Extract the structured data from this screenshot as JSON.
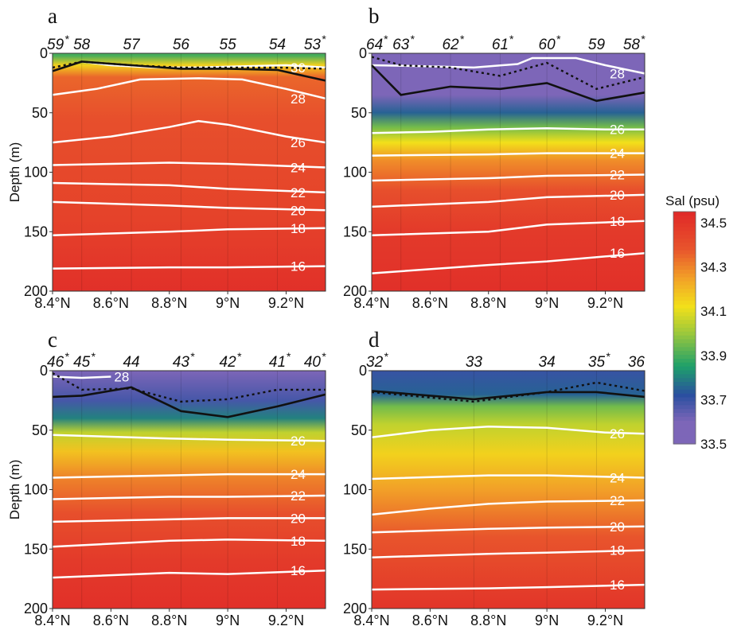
{
  "chart_data": {
    "type": "heatmap",
    "colorbar": {
      "label": "Sal (psu)",
      "ticks": [
        "34.5",
        "34.3",
        "34.1",
        "33.9",
        "33.7",
        "33.5"
      ],
      "range": [
        33.5,
        34.55
      ],
      "colors": {
        "low": "#7d66b8",
        "blue": "#2a4fa0",
        "green": "#1ea06a",
        "lime": "#9cc83c",
        "yellow": "#f2e01a",
        "orange": "#f2a028",
        "red_orange": "#e8542c",
        "red": "#e02828"
      }
    },
    "x_ticks": [
      "8.4°N",
      "8.6°N",
      "8.8°N",
      "9°N",
      "9.2°N"
    ],
    "x_tick_values": [
      8.4,
      8.6,
      8.8,
      9.0,
      9.2
    ],
    "xlim": [
      8.4,
      9.335
    ],
    "y_label": "Depth (m)",
    "y_ticks": [
      "0",
      "50",
      "100",
      "150",
      "200"
    ],
    "y_tick_values": [
      0,
      50,
      100,
      150,
      200
    ],
    "ylim": [
      200,
      0
    ],
    "panels": [
      {
        "id": "a",
        "stations": [
          {
            "name": "59",
            "lat": 8.4,
            "star": true
          },
          {
            "name": "58",
            "lat": 8.5,
            "star": false
          },
          {
            "name": "57",
            "lat": 8.67,
            "star": false
          },
          {
            "name": "56",
            "lat": 8.84,
            "star": false
          },
          {
            "name": "55",
            "lat": 9.0,
            "star": false
          },
          {
            "name": "54",
            "lat": 9.17,
            "star": false
          },
          {
            "name": "53",
            "lat": 9.335,
            "star": true
          }
        ],
        "salinity_layers": [
          {
            "depth": 2,
            "psu": 33.9
          },
          {
            "depth": 10,
            "psu": 34.15
          },
          {
            "depth": 20,
            "psu": 34.35
          },
          {
            "depth": 55,
            "psu": 34.4
          },
          {
            "depth": 90,
            "psu": 34.42
          },
          {
            "depth": 140,
            "psu": 34.45
          },
          {
            "depth": 200,
            "psu": 34.52
          }
        ],
        "isotherms": [
          {
            "label": "30",
            "lat": [
              8.5,
              8.6,
              8.75,
              8.9,
              9.05,
              9.2,
              9.335
            ],
            "depth": [
              7,
              10,
              12,
              12,
              11,
              10,
              12
            ]
          },
          {
            "label": "28",
            "lat": [
              8.4,
              8.55,
              8.7,
              8.9,
              9.05,
              9.2,
              9.335
            ],
            "depth": [
              35,
              30,
              22,
              21,
              22,
              30,
              38
            ]
          },
          {
            "label": "26",
            "lat": [
              8.4,
              8.6,
              8.8,
              8.9,
              9.0,
              9.2,
              9.335
            ],
            "depth": [
              75,
              70,
              62,
              57,
              60,
              70,
              75
            ]
          },
          {
            "label": "24",
            "lat": [
              8.4,
              8.8,
              9.0,
              9.335
            ],
            "depth": [
              94,
              92,
              93,
              96
            ]
          },
          {
            "label": "22",
            "lat": [
              8.4,
              8.8,
              9.0,
              9.335
            ],
            "depth": [
              109,
              111,
              114,
              117
            ]
          },
          {
            "label": "20",
            "lat": [
              8.4,
              8.8,
              9.0,
              9.335
            ],
            "depth": [
              125,
              128,
              130,
              132
            ]
          },
          {
            "label": "18",
            "lat": [
              8.4,
              8.8,
              9.0,
              9.335
            ],
            "depth": [
              153,
              150,
              148,
              147
            ]
          },
          {
            "label": "16",
            "lat": [
              8.4,
              8.8,
              9.0,
              9.335
            ],
            "depth": [
              181,
              180,
              180,
              179
            ]
          }
        ],
        "mixed_layer_solid": {
          "lat": [
            8.4,
            8.5,
            8.67,
            8.84,
            9.0,
            9.17,
            9.335
          ],
          "depth": [
            15,
            7,
            10,
            13,
            13,
            14,
            23
          ]
        },
        "mixed_layer_dotted": {
          "lat": [
            8.4,
            8.5,
            8.67,
            8.84,
            9.0,
            9.17,
            9.335
          ],
          "depth": [
            12,
            7,
            10,
            12,
            12,
            12,
            13
          ]
        }
      },
      {
        "id": "b",
        "stations": [
          {
            "name": "64",
            "lat": 8.4,
            "star": true
          },
          {
            "name": "63",
            "lat": 8.5,
            "star": true
          },
          {
            "name": "62",
            "lat": 8.67,
            "star": true
          },
          {
            "name": "61",
            "lat": 8.84,
            "star": true
          },
          {
            "name": "60",
            "lat": 9.0,
            "star": true
          },
          {
            "name": "59",
            "lat": 9.17,
            "star": false
          },
          {
            "name": "58",
            "lat": 9.335,
            "star": true
          }
        ],
        "salinity_layers": [
          {
            "depth": 0,
            "psu": 33.5
          },
          {
            "depth": 35,
            "psu": 33.6
          },
          {
            "depth": 50,
            "psu": 33.75
          },
          {
            "depth": 62,
            "psu": 33.95
          },
          {
            "depth": 75,
            "psu": 34.12
          },
          {
            "depth": 90,
            "psu": 34.28
          },
          {
            "depth": 115,
            "psu": 34.4
          },
          {
            "depth": 150,
            "psu": 34.48
          },
          {
            "depth": 200,
            "psu": 34.52
          }
        ],
        "isotherms": [
          {
            "label": "28",
            "lat": [
              8.4,
              8.6,
              8.75,
              8.9,
              8.95,
              9.1,
              9.2,
              9.335
            ],
            "depth": [
              10,
              11,
              12,
              9,
              4,
              4,
              10,
              17
            ]
          },
          {
            "label": "26",
            "lat": [
              8.4,
              8.6,
              8.8,
              9.0,
              9.2,
              9.335
            ],
            "depth": [
              67,
              66,
              64,
              63,
              64,
              64
            ]
          },
          {
            "label": "24",
            "lat": [
              8.4,
              8.8,
              9.0,
              9.335
            ],
            "depth": [
              86,
              85,
              84,
              84
            ]
          },
          {
            "label": "22",
            "lat": [
              8.4,
              8.8,
              9.0,
              9.335
            ],
            "depth": [
              107,
              105,
              103,
              102
            ]
          },
          {
            "label": "20",
            "lat": [
              8.4,
              8.8,
              9.0,
              9.335
            ],
            "depth": [
              129,
              125,
              121,
              119
            ]
          },
          {
            "label": "18",
            "lat": [
              8.4,
              8.8,
              9.0,
              9.335
            ],
            "depth": [
              153,
              150,
              144,
              141
            ]
          },
          {
            "label": "16",
            "lat": [
              8.4,
              8.8,
              9.0,
              9.335
            ],
            "depth": [
              185,
              178,
              175,
              168
            ]
          }
        ],
        "mixed_layer_solid": {
          "lat": [
            8.4,
            8.5,
            8.67,
            8.84,
            9.0,
            9.17,
            9.335
          ],
          "depth": [
            10,
            35,
            28,
            30,
            25,
            40,
            33
          ]
        },
        "mixed_layer_dotted": {
          "lat": [
            8.4,
            8.5,
            8.67,
            8.84,
            9.0,
            9.17,
            9.335
          ],
          "depth": [
            3,
            10,
            12,
            19,
            8,
            30,
            20
          ]
        }
      },
      {
        "id": "c",
        "stations": [
          {
            "name": "46",
            "lat": 8.4,
            "star": true
          },
          {
            "name": "45",
            "lat": 8.5,
            "star": true
          },
          {
            "name": "44",
            "lat": 8.67,
            "star": false
          },
          {
            "name": "43",
            "lat": 8.84,
            "star": true
          },
          {
            "name": "42",
            "lat": 9.0,
            "star": true
          },
          {
            "name": "41",
            "lat": 9.17,
            "star": true
          },
          {
            "name": "40",
            "lat": 9.335,
            "star": true
          }
        ],
        "salinity_layers": [
          {
            "depth": 0,
            "psu": 33.55
          },
          {
            "depth": 25,
            "psu": 33.68
          },
          {
            "depth": 40,
            "psu": 33.8
          },
          {
            "depth": 52,
            "psu": 34.05
          },
          {
            "depth": 68,
            "psu": 34.18
          },
          {
            "depth": 90,
            "psu": 34.3
          },
          {
            "depth": 120,
            "psu": 34.4
          },
          {
            "depth": 160,
            "psu": 34.48
          },
          {
            "depth": 200,
            "psu": 34.52
          }
        ],
        "isotherms": [
          {
            "label": "28",
            "lat": [
              8.4,
              8.5,
              8.6
            ],
            "depth": [
              5,
              6,
              5
            ]
          },
          {
            "label": "26",
            "lat": [
              8.4,
              8.8,
              9.0,
              9.335
            ],
            "depth": [
              54,
              57,
              58,
              59
            ]
          },
          {
            "label": "24",
            "lat": [
              8.4,
              8.8,
              9.0,
              9.335
            ],
            "depth": [
              90,
              88,
              87,
              87
            ]
          },
          {
            "label": "22",
            "lat": [
              8.4,
              8.8,
              9.0,
              9.335
            ],
            "depth": [
              108,
              106,
              106,
              105
            ]
          },
          {
            "label": "20",
            "lat": [
              8.4,
              8.8,
              9.0,
              9.335
            ],
            "depth": [
              127,
              125,
              124,
              124
            ]
          },
          {
            "label": "18",
            "lat": [
              8.4,
              8.8,
              9.0,
              9.335
            ],
            "depth": [
              148,
              143,
              142,
              143
            ]
          },
          {
            "label": "16",
            "lat": [
              8.4,
              8.8,
              9.0,
              9.335
            ],
            "depth": [
              174,
              170,
              171,
              168
            ]
          }
        ],
        "mixed_layer_solid": {
          "lat": [
            8.4,
            8.5,
            8.67,
            8.84,
            9.0,
            9.17,
            9.335
          ],
          "depth": [
            22,
            21,
            14,
            34,
            39,
            30,
            20
          ]
        },
        "mixed_layer_dotted": {
          "lat": [
            8.4,
            8.5,
            8.67,
            8.84,
            9.0,
            9.17,
            9.335
          ],
          "depth": [
            2,
            16,
            15,
            26,
            24,
            16,
            16
          ]
        }
      },
      {
        "id": "d",
        "stations": [
          {
            "name": "32",
            "lat": 8.4,
            "star": true
          },
          {
            "name": "33",
            "lat": 8.75,
            "star": false
          },
          {
            "name": "34",
            "lat": 9.0,
            "star": false
          },
          {
            "name": "35",
            "lat": 9.17,
            "star": true
          },
          {
            "name": "36",
            "lat": 9.335,
            "star": false
          }
        ],
        "salinity_layers": [
          {
            "depth": 0,
            "psu": 33.7
          },
          {
            "depth": 20,
            "psu": 33.75
          },
          {
            "depth": 30,
            "psu": 33.95
          },
          {
            "depth": 45,
            "psu": 34.05
          },
          {
            "depth": 70,
            "psu": 34.15
          },
          {
            "depth": 100,
            "psu": 34.25
          },
          {
            "depth": 140,
            "psu": 34.38
          },
          {
            "depth": 200,
            "psu": 34.5
          }
        ],
        "isotherms": [
          {
            "label": "26",
            "lat": [
              8.4,
              8.6,
              8.8,
              9.0,
              9.2,
              9.335
            ],
            "depth": [
              56,
              50,
              47,
              48,
              52,
              53
            ]
          },
          {
            "label": "24",
            "lat": [
              8.4,
              8.8,
              9.0,
              9.335
            ],
            "depth": [
              91,
              88,
              88,
              90
            ]
          },
          {
            "label": "22",
            "lat": [
              8.4,
              8.6,
              8.8,
              9.0,
              9.335
            ],
            "depth": [
              121,
              116,
              112,
              110,
              109
            ]
          },
          {
            "label": "20",
            "lat": [
              8.4,
              8.8,
              9.0,
              9.335
            ],
            "depth": [
              136,
              133,
              132,
              131
            ]
          },
          {
            "label": "18",
            "lat": [
              8.4,
              8.8,
              9.0,
              9.335
            ],
            "depth": [
              157,
              154,
              153,
              151
            ]
          },
          {
            "label": "16",
            "lat": [
              8.4,
              8.8,
              9.0,
              9.335
            ],
            "depth": [
              184,
              183,
              182,
              180
            ]
          }
        ],
        "mixed_layer_solid": {
          "lat": [
            8.4,
            8.75,
            9.0,
            9.17,
            9.335
          ],
          "depth": [
            17,
            24,
            18,
            18,
            22
          ]
        },
        "mixed_layer_dotted": {
          "lat": [
            8.4,
            8.75,
            9.0,
            9.17,
            9.335
          ],
          "depth": [
            18,
            26,
            18,
            10,
            17
          ]
        }
      }
    ]
  }
}
